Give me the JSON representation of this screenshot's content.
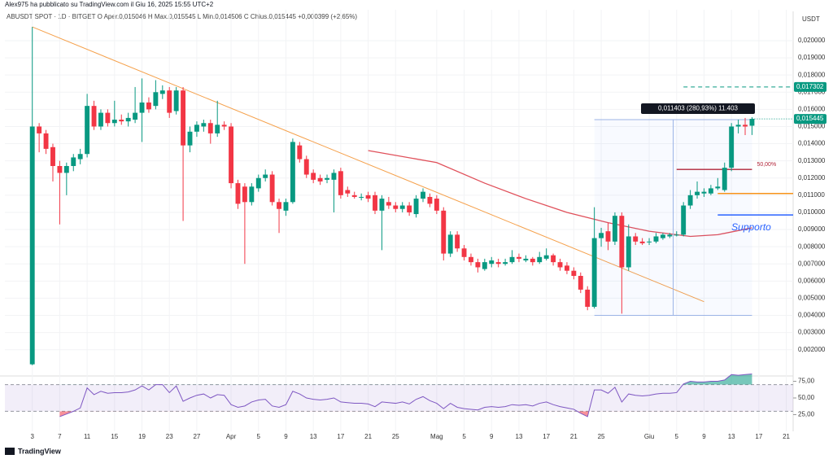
{
  "header": {
    "attribution": "Alex975 ha pubblicato su TradingView.com il Giu 16, 2025 15:55 UTC+2",
    "symbol_line": "ABUSDT SPOT · 1D · BITGET   O  Aper.0,015046   H  Max.0,015545   L  Min.0,014506   C  Chius.0,015445  +0,000399 (+2,65%)",
    "currency": "USDT",
    "logo": "TradingView"
  },
  "chart_data": {
    "type": "candlestick",
    "up_color": "#089981",
    "down_color": "#f23645",
    "xlim": [
      -4,
      111
    ],
    "ylim": [
      0.00066,
      0.0218
    ],
    "xticks": [
      {
        "value": 0,
        "label": "3"
      },
      {
        "value": 4,
        "label": "7"
      },
      {
        "value": 8,
        "label": "11"
      },
      {
        "value": 12,
        "label": "15"
      },
      {
        "value": 16,
        "label": "19"
      },
      {
        "value": 20,
        "label": "23"
      },
      {
        "value": 24,
        "label": "27"
      },
      {
        "value": 29,
        "label": "Apr"
      },
      {
        "value": 33,
        "label": "5"
      },
      {
        "value": 37,
        "label": "9"
      },
      {
        "value": 41,
        "label": "13"
      },
      {
        "value": 45,
        "label": "17"
      },
      {
        "value": 49,
        "label": "21"
      },
      {
        "value": 53,
        "label": "25"
      },
      {
        "value": 59,
        "label": "Mag"
      },
      {
        "value": 63,
        "label": "5"
      },
      {
        "value": 67,
        "label": "9"
      },
      {
        "value": 71,
        "label": "13"
      },
      {
        "value": 75,
        "label": "17"
      },
      {
        "value": 79,
        "label": "21"
      },
      {
        "value": 83,
        "label": "25"
      },
      {
        "value": 90,
        "label": "Giu"
      },
      {
        "value": 94,
        "label": "5"
      },
      {
        "value": 98,
        "label": "9"
      },
      {
        "value": 102,
        "label": "13"
      },
      {
        "value": 106,
        "label": "17"
      },
      {
        "value": 110,
        "label": "21"
      }
    ],
    "yticks": [
      {
        "value": 0.002,
        "label": "0,002000"
      },
      {
        "value": 0.003,
        "label": "0,003000"
      },
      {
        "value": 0.004,
        "label": "0,004000"
      },
      {
        "value": 0.005,
        "label": "0,005000"
      },
      {
        "value": 0.006,
        "label": "0,006000"
      },
      {
        "value": 0.007,
        "label": "0,007000"
      },
      {
        "value": 0.008,
        "label": "0,008000"
      },
      {
        "value": 0.009,
        "label": "0,009000"
      },
      {
        "value": 0.01,
        "label": "0,010000"
      },
      {
        "value": 0.011,
        "label": "0,011000"
      },
      {
        "value": 0.012,
        "label": "0,012000"
      },
      {
        "value": 0.013,
        "label": "0,013000"
      },
      {
        "value": 0.014,
        "label": "0,014000"
      },
      {
        "value": 0.015,
        "label": "0,015000"
      },
      {
        "value": 0.016,
        "label": "0,016000"
      },
      {
        "value": 0.017,
        "label": "0,017000"
      },
      {
        "value": 0.018,
        "label": "0,018000"
      },
      {
        "value": 0.019,
        "label": "0,019000"
      },
      {
        "value": 0.02,
        "label": "0,020000"
      }
    ],
    "ohlc": [
      [
        0.00115,
        0.0208,
        0.0011,
        0.015
      ],
      [
        0.015,
        0.0152,
        0.0135,
        0.0146
      ],
      [
        0.0146,
        0.0148,
        0.0134,
        0.0137
      ],
      [
        0.0138,
        0.014,
        0.0118,
        0.0127
      ],
      [
        0.0127,
        0.013,
        0.0093,
        0.0123
      ],
      [
        0.0123,
        0.0129,
        0.011,
        0.0127
      ],
      [
        0.0127,
        0.0134,
        0.0124,
        0.0132
      ],
      [
        0.0131,
        0.0137,
        0.0128,
        0.0134
      ],
      [
        0.0134,
        0.0169,
        0.0132,
        0.0162
      ],
      [
        0.0162,
        0.0165,
        0.0148,
        0.015
      ],
      [
        0.015,
        0.016,
        0.0148,
        0.0158
      ],
      [
        0.0158,
        0.016,
        0.015,
        0.0152
      ],
      [
        0.0152,
        0.0165,
        0.015,
        0.0154
      ],
      [
        0.0154,
        0.0157,
        0.0151,
        0.0153
      ],
      [
        0.0153,
        0.0158,
        0.015,
        0.0155
      ],
      [
        0.0154,
        0.0173,
        0.0152,
        0.0158
      ],
      [
        0.0158,
        0.0178,
        0.0141,
        0.0164
      ],
      [
        0.0164,
        0.0167,
        0.0158,
        0.016
      ],
      [
        0.0162,
        0.0177,
        0.016,
        0.017
      ],
      [
        0.0169,
        0.0174,
        0.0166,
        0.0171
      ],
      [
        0.0171,
        0.0173,
        0.0155,
        0.0158
      ],
      [
        0.0159,
        0.0173,
        0.0157,
        0.0171
      ],
      [
        0.0171,
        0.0173,
        0.0095,
        0.0139
      ],
      [
        0.0139,
        0.015,
        0.0135,
        0.0147
      ],
      [
        0.0147,
        0.0153,
        0.0144,
        0.0151
      ],
      [
        0.015,
        0.0154,
        0.0147,
        0.0152
      ],
      [
        0.0152,
        0.0154,
        0.014,
        0.0146
      ],
      [
        0.0146,
        0.0165,
        0.0144,
        0.0151
      ],
      [
        0.0151,
        0.0153,
        0.0148,
        0.015
      ],
      [
        0.015,
        0.0152,
        0.0114,
        0.0117
      ],
      [
        0.0117,
        0.0119,
        0.0102,
        0.0105
      ],
      [
        0.0115,
        0.0117,
        0.007,
        0.0106
      ],
      [
        0.0106,
        0.0117,
        0.0104,
        0.0115
      ],
      [
        0.0114,
        0.0122,
        0.0112,
        0.012
      ],
      [
        0.012,
        0.0125,
        0.0118,
        0.0122
      ],
      [
        0.0122,
        0.0124,
        0.0104,
        0.0106
      ],
      [
        0.0106,
        0.0108,
        0.0088,
        0.0102
      ],
      [
        0.0101,
        0.0108,
        0.0098,
        0.0106
      ],
      [
        0.0106,
        0.0143,
        0.0105,
        0.0141
      ],
      [
        0.0139,
        0.0141,
        0.0129,
        0.0131
      ],
      [
        0.0131,
        0.0133,
        0.012,
        0.0122
      ],
      [
        0.0123,
        0.0125,
        0.0117,
        0.0119
      ],
      [
        0.012,
        0.0122,
        0.0116,
        0.0118
      ],
      [
        0.0119,
        0.0122,
        0.0117,
        0.012
      ],
      [
        0.0119,
        0.0125,
        0.01,
        0.0123
      ],
      [
        0.0124,
        0.0126,
        0.0108,
        0.011
      ],
      [
        0.0113,
        0.0115,
        0.0109,
        0.0111
      ],
      [
        0.011,
        0.0112,
        0.0108,
        0.0109
      ],
      [
        0.0109,
        0.0111,
        0.0107,
        0.0109
      ],
      [
        0.011,
        0.0112,
        0.0106,
        0.0108
      ],
      [
        0.011,
        0.0112,
        0.0099,
        0.0101
      ],
      [
        0.0101,
        0.011,
        0.0078,
        0.0108
      ],
      [
        0.0106,
        0.0109,
        0.0102,
        0.0104
      ],
      [
        0.0104,
        0.0106,
        0.01,
        0.0102
      ],
      [
        0.0102,
        0.0106,
        0.01,
        0.0104
      ],
      [
        0.0104,
        0.0106,
        0.0098,
        0.01
      ],
      [
        0.0099,
        0.011,
        0.0097,
        0.0108
      ],
      [
        0.0108,
        0.0114,
        0.0106,
        0.0112
      ],
      [
        0.0109,
        0.0111,
        0.0103,
        0.0105
      ],
      [
        0.0108,
        0.011,
        0.0099,
        0.0101
      ],
      [
        0.0101,
        0.0103,
        0.0072,
        0.0076
      ],
      [
        0.0076,
        0.0089,
        0.0074,
        0.0087
      ],
      [
        0.0087,
        0.0089,
        0.0077,
        0.0079
      ],
      [
        0.0079,
        0.0081,
        0.0072,
        0.0074
      ],
      [
        0.0074,
        0.0076,
        0.0069,
        0.0071
      ],
      [
        0.0071,
        0.0073,
        0.0065,
        0.0068
      ],
      [
        0.0067,
        0.0073,
        0.0066,
        0.0071
      ],
      [
        0.007,
        0.0074,
        0.0068,
        0.0072
      ],
      [
        0.0071,
        0.0073,
        0.0068,
        0.007
      ],
      [
        0.007,
        0.0073,
        0.0069,
        0.0071
      ],
      [
        0.0071,
        0.0078,
        0.007,
        0.0074
      ],
      [
        0.0074,
        0.0076,
        0.0071,
        0.0073
      ],
      [
        0.0072,
        0.0075,
        0.0071,
        0.0073
      ],
      [
        0.0073,
        0.0074,
        0.0069,
        0.0071
      ],
      [
        0.0071,
        0.0077,
        0.007,
        0.0074
      ],
      [
        0.0073,
        0.0079,
        0.0072,
        0.0075
      ],
      [
        0.0075,
        0.0076,
        0.0069,
        0.0071
      ],
      [
        0.0071,
        0.0073,
        0.0066,
        0.0068
      ],
      [
        0.0069,
        0.0071,
        0.0064,
        0.0066
      ],
      [
        0.0066,
        0.0068,
        0.0061,
        0.0063
      ],
      [
        0.0063,
        0.0065,
        0.0053,
        0.0055
      ],
      [
        0.0055,
        0.0057,
        0.0043,
        0.0045
      ],
      [
        0.0045,
        0.0103,
        0.0044,
        0.0085
      ],
      [
        0.0085,
        0.0091,
        0.008,
        0.0088
      ],
      [
        0.0089,
        0.0094,
        0.0078,
        0.0083
      ],
      [
        0.0083,
        0.01,
        0.0081,
        0.0098
      ],
      [
        0.0098,
        0.01,
        0.0041,
        0.0068
      ],
      [
        0.0068,
        0.0093,
        0.0066,
        0.0086
      ],
      [
        0.0086,
        0.0088,
        0.0081,
        0.0083
      ],
      [
        0.0083,
        0.0085,
        0.0081,
        0.0082
      ],
      [
        0.0083,
        0.0085,
        0.0081,
        0.0083
      ],
      [
        0.0083,
        0.0088,
        0.0082,
        0.0086
      ],
      [
        0.0085,
        0.0088,
        0.0084,
        0.0087
      ],
      [
        0.0086,
        0.0088,
        0.0085,
        0.0087
      ],
      [
        0.0087,
        0.0089,
        0.0086,
        0.0087
      ],
      [
        0.0087,
        0.0106,
        0.0086,
        0.0104
      ],
      [
        0.0104,
        0.0113,
        0.0102,
        0.011
      ],
      [
        0.011,
        0.0118,
        0.0108,
        0.0112
      ],
      [
        0.0111,
        0.0114,
        0.0109,
        0.0112
      ],
      [
        0.0111,
        0.0116,
        0.011,
        0.0114
      ],
      [
        0.0114,
        0.012,
        0.0113,
        0.0115
      ],
      [
        0.0113,
        0.0129,
        0.0112,
        0.0126
      ],
      [
        0.0126,
        0.0152,
        0.0124,
        0.015
      ],
      [
        0.015,
        0.0154,
        0.0146,
        0.0151
      ],
      [
        0.0151,
        0.0155,
        0.0145,
        0.015
      ],
      [
        0.015046,
        0.015545,
        0.014506,
        0.015445
      ]
    ],
    "moving_average": {
      "color": "#e0505a",
      "x": [
        49,
        59,
        66,
        72,
        78,
        84,
        90,
        96,
        100,
        105
      ],
      "values": [
        0.0136,
        0.0129,
        0.0117,
        0.0108,
        0.01,
        0.0094,
        0.0089,
        0.0086,
        0.0087,
        0.0091
      ]
    },
    "trendline": {
      "color": "#f5a04a",
      "x": [
        0,
        98
      ],
      "values": [
        0.0208,
        0.0048
      ]
    },
    "last_price": {
      "value": 0.015445,
      "label": "0,015445",
      "color": "#089981"
    },
    "target": {
      "value": 0.017302,
      "label": "0,017302",
      "color": "#089981"
    },
    "measure": {
      "x": [
        82,
        105
      ],
      "values": [
        0.004,
        0.0154
      ],
      "label": "0,011403 (280,93%) 11.403"
    },
    "fib_level": {
      "x": [
        94,
        105
      ],
      "value": 0.0125,
      "label": "50,00%",
      "color": "#b2263a"
    },
    "support_lines": [
      {
        "x": [
          100,
          111
        ],
        "value": 0.0111,
        "color": "#f7931a"
      },
      {
        "x": [
          100,
          111
        ],
        "value": 0.00985,
        "color": "#2962ff"
      }
    ],
    "support_label": {
      "text": "Supporto",
      "x": 102,
      "value": 0.0091
    },
    "rsi": {
      "color": "#7e57c2",
      "ylim": [
        0,
        100
      ],
      "band": [
        30,
        70
      ],
      "yticks": [
        {
          "value": 75,
          "label": "75,00"
        },
        {
          "value": 50,
          "label": "50,00"
        },
        {
          "value": 25,
          "label": "25,00"
        }
      ],
      "values": [
        null,
        null,
        null,
        null,
        22,
        26,
        30,
        35,
        65,
        55,
        60,
        57,
        58,
        58,
        59,
        62,
        68,
        62,
        70,
        70,
        58,
        68,
        45,
        50,
        54,
        56,
        50,
        55,
        54,
        40,
        36,
        38,
        44,
        47,
        48,
        38,
        36,
        40,
        60,
        56,
        50,
        48,
        47,
        48,
        50,
        44,
        43,
        42,
        42,
        41,
        37,
        44,
        43,
        42,
        44,
        41,
        48,
        52,
        46,
        42,
        34,
        42,
        36,
        34,
        33,
        32,
        36,
        37,
        36,
        37,
        40,
        39,
        40,
        38,
        42,
        44,
        40,
        37,
        35,
        33,
        27,
        22,
        62,
        62,
        57,
        66,
        44,
        56,
        54,
        53,
        54,
        56,
        57,
        57,
        58,
        71,
        75,
        74,
        74,
        75,
        75,
        77,
        85,
        84,
        85,
        86
      ]
    }
  }
}
